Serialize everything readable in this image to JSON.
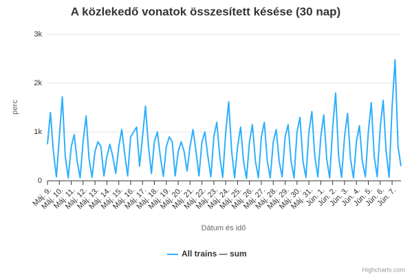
{
  "chart_data": {
    "type": "line",
    "title": "A közlekedő vonatok összesített késése (30 nap)",
    "y_label": "perc",
    "x_label": "Dátum és idő",
    "credits": "Highcharts.com",
    "categories": [
      "Máj. 9.",
      null,
      null,
      null,
      "Máj. 10.",
      null,
      null,
      null,
      "Máj. 11.",
      null,
      null,
      null,
      "Máj. 12.",
      null,
      null,
      null,
      "Máj. 13.",
      null,
      null,
      null,
      "Máj. 14.",
      null,
      null,
      null,
      "Máj. 15.",
      null,
      null,
      null,
      "Máj. 16.",
      null,
      null,
      null,
      "Máj. 17.",
      null,
      null,
      null,
      "Máj. 18.",
      null,
      null,
      null,
      "Máj. 19.",
      null,
      null,
      null,
      "Máj. 20.",
      null,
      null,
      null,
      "Máj. 21.",
      null,
      null,
      null,
      "Máj. 22.",
      null,
      null,
      null,
      "Máj. 23.",
      null,
      null,
      null,
      "Máj. 24.",
      null,
      null,
      null,
      "Máj. 25.",
      null,
      null,
      null,
      "Máj. 26.",
      null,
      null,
      null,
      "Máj. 27.",
      null,
      null,
      null,
      "Máj. 28.",
      null,
      null,
      null,
      "Máj. 29.",
      null,
      null,
      null,
      "Máj. 30.",
      null,
      null,
      null,
      "Máj. 31.",
      null,
      null,
      null,
      "Jún. 1.",
      null,
      null,
      null,
      "Jún. 2.",
      null,
      null,
      null,
      "Jún. 3.",
      null,
      null,
      null,
      "Jún. 4.",
      null,
      null,
      null,
      "Jún. 5.",
      null,
      null,
      null,
      "Jún. 6.",
      null,
      null,
      null,
      "Jún. 7.",
      null,
      null,
      null
    ],
    "series": [
      {
        "name": "All trains — sum",
        "color": "#2caffe",
        "values": [
          750,
          1400,
          600,
          80,
          900,
          1720,
          500,
          60,
          700,
          950,
          400,
          60,
          800,
          1330,
          450,
          70,
          600,
          800,
          700,
          100,
          500,
          750,
          500,
          150,
          700,
          1050,
          550,
          100,
          900,
          1000,
          1100,
          300,
          900,
          1530,
          700,
          150,
          800,
          1000,
          500,
          90,
          700,
          900,
          800,
          100,
          600,
          800,
          600,
          200,
          700,
          1050,
          600,
          100,
          800,
          1000,
          500,
          80,
          900,
          1200,
          500,
          70,
          1000,
          1620,
          600,
          60,
          700,
          1100,
          400,
          50,
          800,
          1150,
          400,
          60,
          900,
          1200,
          400,
          60,
          800,
          1050,
          400,
          80,
          900,
          1150,
          400,
          60,
          1000,
          1300,
          400,
          70,
          1000,
          1420,
          500,
          80,
          900,
          1350,
          450,
          60,
          1100,
          1800,
          500,
          70,
          900,
          1380,
          450,
          60,
          800,
          1130,
          400,
          80,
          1000,
          1600,
          500,
          80,
          1100,
          1650,
          600,
          70,
          1500,
          2480,
          700,
          300
        ]
      }
    ],
    "ylim": [
      0,
      3000
    ],
    "yticks": [
      0,
      {
        "value": 1000,
        "label": "1k"
      },
      {
        "value": 2000,
        "label": "2k"
      },
      {
        "value": 3000,
        "label": "3k"
      }
    ],
    "grid": true
  }
}
